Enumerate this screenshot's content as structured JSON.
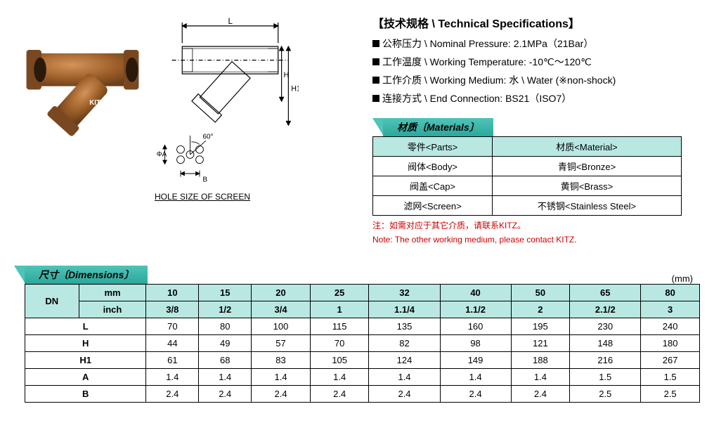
{
  "specs": {
    "title": "【技术规格 \\ Technical Specifications】",
    "lines": [
      "公称压力 \\ Nominal Pressure: 2.1MPa（21Bar）",
      "工作温度 \\ Working Temperature: -10℃～120℃",
      "工作介质 \\ Working Medium: 水 \\ Water (※non-shock)",
      "连接方式 \\ End Connection: BS21（ISO7）"
    ]
  },
  "materials": {
    "header": "材质〔Materials〕",
    "columns": [
      "零件<Parts>",
      "材质<Material>"
    ],
    "rows": [
      [
        "阀体<Body>",
        "青铜<Bronze>"
      ],
      [
        "阀盖<Cap>",
        "黄铜<Brass>"
      ],
      [
        "滤网<Screen>",
        "不锈钢<Stainless Steel>"
      ]
    ],
    "note_cn": "注：如需对应于其它介质，请联系KITZ。",
    "note_en": "Note:  The other working medium, please contact KITZ."
  },
  "holeLabel": "HOLE SIZE OF SCREEN",
  "dimensions": {
    "header": "尺寸〔Dimensions〕",
    "unit": "(mm)",
    "dnLabel": "DN",
    "mmLabel": "mm",
    "inchLabel": "inch",
    "mmRow": [
      "10",
      "15",
      "20",
      "25",
      "32",
      "40",
      "50",
      "65",
      "80"
    ],
    "inchRow": [
      "3/8",
      "1/2",
      "3/4",
      "1",
      "1.1/4",
      "1.1/2",
      "2",
      "2.1/2",
      "3"
    ],
    "dataRows": [
      {
        "label": "L",
        "values": [
          "70",
          "80",
          "100",
          "115",
          "135",
          "160",
          "195",
          "230",
          "240"
        ]
      },
      {
        "label": "H",
        "values": [
          "44",
          "49",
          "57",
          "70",
          "82",
          "98",
          "121",
          "148",
          "180"
        ]
      },
      {
        "label": "H1",
        "values": [
          "61",
          "68",
          "83",
          "105",
          "124",
          "149",
          "188",
          "216",
          "267"
        ]
      },
      {
        "label": "A",
        "values": [
          "1.4",
          "1.4",
          "1.4",
          "1.4",
          "1.4",
          "1.4",
          "1.4",
          "1.5",
          "1.5"
        ]
      },
      {
        "label": "B",
        "values": [
          "2.4",
          "2.4",
          "2.4",
          "2.4",
          "2.4",
          "2.4",
          "2.4",
          "2.5",
          "2.5"
        ]
      }
    ]
  },
  "colors": {
    "mint": "#b9e8e2",
    "teal": "#2ba89b",
    "noteRed": "#c00000",
    "bronze1": "#8b5a2b",
    "bronze2": "#a66b3a"
  },
  "drawing": {
    "labels": {
      "L": "L",
      "H": "H",
      "H1": "H1",
      "A": "ΦA",
      "B": "B",
      "angle": "60°"
    }
  }
}
